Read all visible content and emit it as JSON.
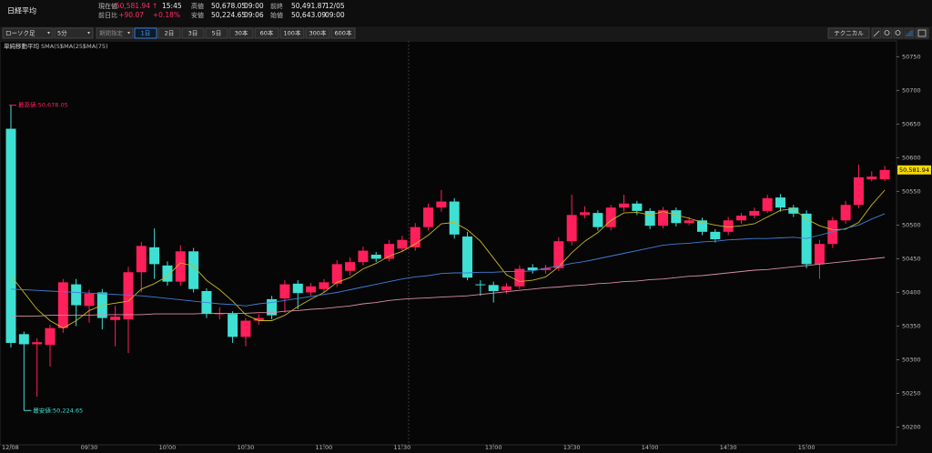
{
  "header": {
    "title": "日経平均",
    "quotes": [
      {
        "label": "現在値",
        "value": "50,581.94",
        "mark": "↑",
        "time": "15:45"
      },
      {
        "label": "前日比",
        "value": "+90.07",
        "extra": "+0.18%"
      },
      {
        "label": "高値",
        "value": "50,678.05",
        "time": "09:00"
      },
      {
        "label": "安値",
        "value": "50,224.65",
        "time": "09:06"
      },
      {
        "label": "前終",
        "value": "50,491.87",
        "time": "12/05"
      },
      {
        "label": "始値",
        "value": "50,643.09",
        "time": "09:00"
      }
    ]
  },
  "toolbar": {
    "chart_type": "ローソク足",
    "interval": "5分",
    "period": "期間指定",
    "ranges": [
      "1日",
      "2日",
      "3日",
      "5日",
      "30本",
      "60本",
      "100本",
      "300本",
      "600本"
    ],
    "technical": "テクニカル"
  },
  "chart_data": {
    "type": "candlestick",
    "indicator": "単純移動平均",
    "up_color": "#ff1f5a",
    "down_color": "#3fe0d4",
    "categories": [
      "12/08",
      null,
      null,
      null,
      null,
      null,
      "09:30",
      null,
      null,
      null,
      null,
      null,
      "10:00",
      null,
      null,
      null,
      null,
      null,
      "10:30",
      null,
      null,
      null,
      null,
      null,
      "11:00",
      null,
      null,
      null,
      null,
      null,
      "11:30",
      null,
      null,
      null,
      null,
      null,
      null,
      "13:00",
      null,
      null,
      null,
      null,
      null,
      "13:30",
      null,
      null,
      null,
      null,
      null,
      "14:00",
      null,
      null,
      null,
      null,
      null,
      "14:30",
      null,
      null,
      null,
      null,
      null,
      "15:00",
      null,
      null,
      null,
      null,
      null,
      null
    ],
    "open": [
      50643.09,
      50338,
      50323,
      50322,
      50347,
      50412,
      50380,
      50400,
      50359,
      50360,
      50430,
      50467,
      50440,
      50416,
      50461,
      50402,
      50368,
      50368,
      50334,
      50358,
      50390,
      50391,
      50413,
      50400,
      50405,
      50413,
      50432,
      50445,
      50456,
      50450,
      50465,
      50467,
      50497,
      50526,
      50535,
      50483,
      50412,
      50411,
      50403,
      50409,
      50437,
      50433,
      50436,
      50476,
      50515,
      50518,
      50497,
      50526,
      50532,
      50521,
      50499,
      50522,
      50503,
      50507,
      50490,
      50490,
      50507,
      50514,
      50521,
      50541,
      50526,
      50517,
      50442,
      50472,
      50507,
      50530,
      50568,
      50568
    ],
    "high": [
      50678.05,
      50342,
      50332,
      50352,
      50420,
      50420,
      50404,
      50405,
      50380,
      50438,
      50475,
      50495,
      50446,
      50470,
      50466,
      50406,
      50378,
      50372,
      50362,
      50368,
      50395,
      50418,
      50418,
      50414,
      50420,
      50448,
      50452,
      50468,
      50460,
      50478,
      50484,
      50503,
      50532,
      50552,
      50540,
      50490,
      50418,
      50416,
      50414,
      50440,
      50442,
      50441,
      50482,
      50545,
      50528,
      50522,
      50530,
      50545,
      50536,
      50525,
      50527,
      50526,
      50512,
      50511,
      50494,
      50512,
      50518,
      50526,
      50545,
      50546,
      50530,
      50522,
      50478,
      50512,
      50536,
      50590,
      50580,
      50588
    ],
    "low": [
      50318,
      50224.65,
      50245,
      50290,
      50340,
      50350,
      50355,
      50345,
      50320,
      50310,
      50400,
      50420,
      50410,
      50410,
      50400,
      50362,
      50360,
      50325,
      50320,
      50352,
      50360,
      50370,
      50375,
      50395,
      50400,
      50408,
      50425,
      50440,
      50445,
      50446,
      50460,
      50462,
      50492,
      50520,
      50480,
      50418,
      50395,
      50385,
      50398,
      50405,
      50428,
      50428,
      50432,
      50470,
      50510,
      50492,
      50492,
      50520,
      50515,
      50494,
      50495,
      50498,
      50500,
      50485,
      50474,
      50485,
      50502,
      50510,
      50518,
      50520,
      50512,
      50436,
      50420,
      50466,
      50502,
      50525,
      50565,
      50565
    ],
    "close": [
      50325,
      50323,
      50326,
      50347,
      50415,
      50381,
      50398,
      50362,
      50364,
      50430,
      50469,
      50442,
      50416,
      50461,
      50405,
      50368,
      50369,
      50334,
      50358,
      50362,
      50366,
      50412,
      50399,
      50409,
      50415,
      50442,
      50445,
      50462,
      50450,
      50472,
      50478,
      50497,
      50526,
      50535,
      50486,
      50422,
      50411,
      50402,
      50409,
      50435,
      50433,
      50436,
      50476,
      50515,
      50519,
      50497,
      50526,
      50532,
      50521,
      50499,
      50522,
      50503,
      50507,
      50490,
      50479,
      50507,
      50514,
      50521,
      50540,
      50526,
      50517,
      50442,
      50472,
      50507,
      50530,
      50571,
      50572,
      50581.94
    ],
    "series": [
      {
        "name": "SMA(5)",
        "color": "#c9b81a",
        "values": [
          50425,
          50400,
          50375,
          50358,
          50347,
          50358,
          50373,
          50381,
          50384,
          50387,
          50405,
          50413,
          50424,
          50444,
          50439,
          50418,
          50404,
          50387,
          50367,
          50358,
          50358,
          50366,
          50379,
          50390,
          50400,
          50415,
          50422,
          50435,
          50443,
          50454,
          50461,
          50472,
          50485,
          50502,
          50504,
          50493,
          50476,
          50451,
          50426,
          50416,
          50418,
          50423,
          50438,
          50459,
          50476,
          50489,
          50507,
          50518,
          50519,
          50515,
          50520,
          50515,
          50510,
          50504,
          50500,
          50497,
          50499,
          50502,
          50512,
          50522,
          50524,
          50509,
          50499,
          50493,
          50494,
          50504,
          50530,
          50552
        ]
      },
      {
        "name": "SMA(25)",
        "color": "#3f7fd8",
        "values": [
          50405,
          50404,
          50403,
          50402,
          50401,
          50400,
          50399,
          50398,
          50397,
          50396,
          50395,
          50393,
          50391,
          50389,
          50387,
          50385,
          50383,
          50382,
          50380,
          50383,
          50385,
          50388,
          50391,
          50394,
          50397,
          50400,
          50404,
          50408,
          50412,
          50416,
          50420,
          50423,
          50425,
          50428,
          50429,
          50429,
          50430,
          50430,
          50431,
          50431,
          50432,
          50436,
          50439,
          50443,
          50446,
          50450,
          50454,
          50458,
          50462,
          50466,
          50470,
          50472,
          50473,
          50475,
          50476,
          50478,
          50479,
          50480,
          50480,
          50481,
          50482,
          50480,
          50485,
          50490,
          50495,
          50500,
          50509,
          50517
        ]
      },
      {
        "name": "SMA(75)",
        "color": "#d88fa6",
        "values": [
          50365,
          50365,
          50365,
          50366,
          50366,
          50366,
          50366,
          50367,
          50367,
          50367,
          50367,
          50368,
          50368,
          50368,
          50368,
          50369,
          50369,
          50369,
          50369,
          50370,
          50370,
          50372,
          50373,
          50375,
          50376,
          50378,
          50380,
          50383,
          50385,
          50388,
          50390,
          50391,
          50392,
          50393,
          50394,
          50395,
          50397,
          50399,
          50401,
          50403,
          50405,
          50407,
          50408,
          50410,
          50411,
          50413,
          50414,
          50416,
          50417,
          50419,
          50420,
          50422,
          50424,
          50425,
          50427,
          50429,
          50431,
          50433,
          50434,
          50436,
          50438,
          50440,
          50442,
          50444,
          50446,
          50448,
          50450,
          50452
        ]
      }
    ],
    "max_label": "最高値:50,678.05",
    "min_label": "最安値:50,224.65",
    "last_label": "50,581.94",
    "ylim": [
      50175,
      50760
    ],
    "yticks": [
      50200,
      50250,
      50300,
      50350,
      50400,
      50450,
      50500,
      50550,
      50600,
      50650,
      50700,
      50750
    ],
    "grid": false
  }
}
